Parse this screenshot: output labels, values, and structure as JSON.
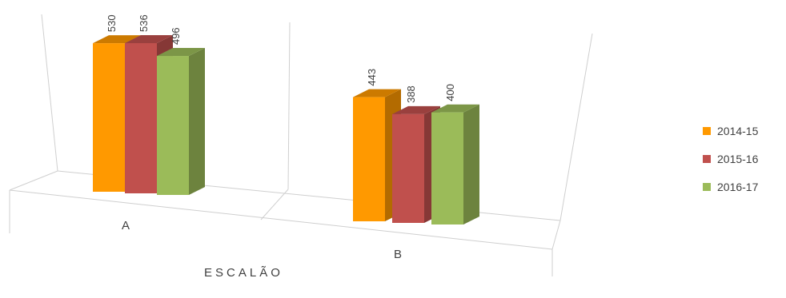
{
  "chart_data": {
    "type": "bar",
    "categories": [
      "A",
      "B"
    ],
    "series": [
      {
        "name": "2014-15",
        "values": [
          530,
          443
        ],
        "color": "#ff9900"
      },
      {
        "name": "2015-16",
        "values": [
          536,
          388
        ],
        "color": "#c0504d"
      },
      {
        "name": "2016-17",
        "values": [
          496,
          400
        ],
        "color": "#9bbb59"
      }
    ],
    "xlabel": "ESCALÃO",
    "ylabel": "",
    "title": "",
    "grid": false,
    "legend_position": "right",
    "three_d": true
  }
}
